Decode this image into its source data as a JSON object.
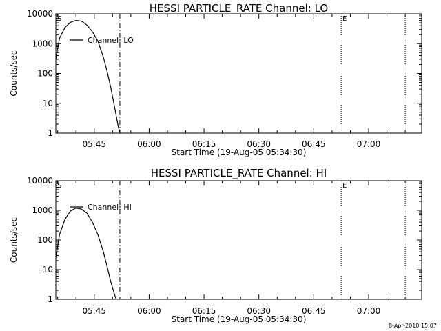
{
  "chart_data": [
    {
      "type": "line",
      "title": "HESSI PARTICLE_RATE Channel: LO",
      "xlabel": "Start Time (19-Aug-05 05:34:30)",
      "ylabel": "Counts/sec",
      "yscale": "log",
      "ylim": [
        1,
        10000
      ],
      "xlim": [
        "05:34:30",
        "07:14:30"
      ],
      "x_ticks": [
        "05:45",
        "06:00",
        "06:15",
        "06:30",
        "06:45",
        "07:00"
      ],
      "y_ticks": [
        "1",
        "10",
        "100",
        "1000",
        "10000"
      ],
      "series": [
        {
          "name": "Channel: LO",
          "x": [
            "05:34:30",
            "05:35:30",
            "05:37:00",
            "05:38:30",
            "05:40:00",
            "05:41:30",
            "05:43:00",
            "05:44:30",
            "05:46:00",
            "05:47:30",
            "05:48:30",
            "05:49:30",
            "05:50:30",
            "05:51:30",
            "05:52:00"
          ],
          "values": [
            300,
            1500,
            3500,
            5200,
            6000,
            5700,
            4200,
            2500,
            1200,
            350,
            120,
            35,
            8,
            1.8,
            1
          ]
        }
      ],
      "markers": [
        {
          "time": "05:52:00",
          "style": "dash-dot"
        },
        {
          "time": "06:52:30",
          "style": "dotted",
          "label": "E"
        },
        {
          "time": "07:10:00",
          "style": "dotted"
        }
      ],
      "corner_label": "S",
      "legend_position": "upper-left"
    },
    {
      "type": "line",
      "title": "HESSI PARTICLE_RATE Channel: HI",
      "xlabel": "Start Time (19-Aug-05 05:34:30)",
      "ylabel": "Counts/sec",
      "yscale": "log",
      "ylim": [
        1,
        10000
      ],
      "xlim": [
        "05:34:30",
        "07:14:30"
      ],
      "x_ticks": [
        "05:45",
        "06:00",
        "06:15",
        "06:30",
        "06:45",
        "07:00"
      ],
      "y_ticks": [
        "1",
        "10",
        "100",
        "1000",
        "10000"
      ],
      "series": [
        {
          "name": "Channel: HI",
          "x": [
            "05:34:30",
            "05:35:30",
            "05:37:00",
            "05:38:30",
            "05:40:00",
            "05:41:30",
            "05:43:00",
            "05:44:30",
            "05:46:00",
            "05:47:30",
            "05:48:30",
            "05:49:30",
            "05:50:30",
            "05:51:00"
          ],
          "values": [
            25,
            150,
            500,
            950,
            1200,
            1100,
            800,
            400,
            150,
            40,
            13,
            4,
            1.5,
            1
          ]
        }
      ],
      "markers": [
        {
          "time": "05:52:00",
          "style": "dash-dot"
        },
        {
          "time": "06:52:30",
          "style": "dotted",
          "label": "E"
        },
        {
          "time": "07:10:00",
          "style": "dotted"
        }
      ],
      "corner_label": "S",
      "legend_position": "upper-left"
    }
  ],
  "timestamp": "8-Apr-2010 15:07"
}
